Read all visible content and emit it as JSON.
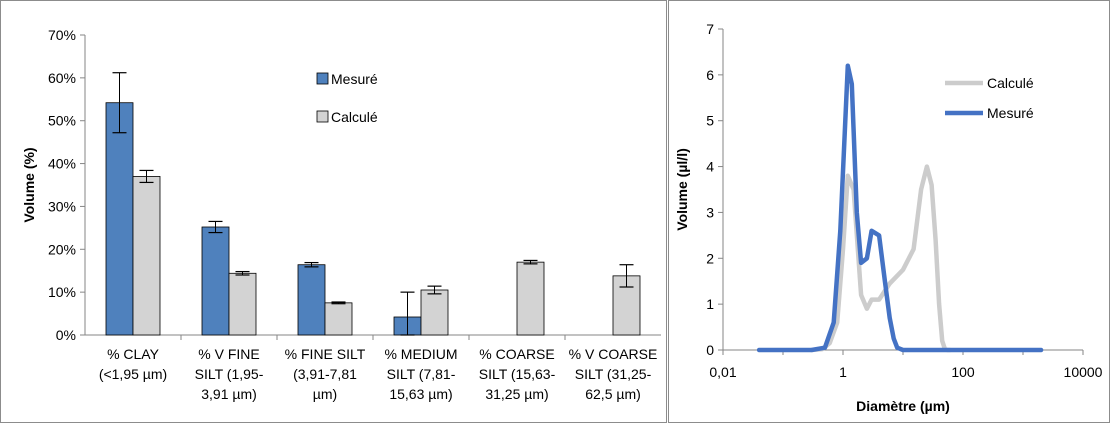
{
  "chart_data": [
    {
      "type": "bar",
      "ylabel": "Volume (%)",
      "ylim": [
        0,
        70
      ],
      "yticks": [
        "0%",
        "10%",
        "20%",
        "30%",
        "40%",
        "50%",
        "60%",
        "70%"
      ],
      "grid": false,
      "legend_position": "top-right",
      "categories": [
        [
          "% CLAY",
          "(<1,95 µm)"
        ],
        [
          "% V FINE",
          "SILT (1,95-",
          "3,91 µm)"
        ],
        [
          "% FINE SILT",
          "(3,91-7,81",
          "µm)"
        ],
        [
          "% MEDIUM",
          "SILT (7,81-",
          "15,63 µm)"
        ],
        [
          "% COARSE",
          "SILT (15,63-",
          "31,25 µm)"
        ],
        [
          "% V COARSE",
          "SILT (31,25-",
          "62,5 µm)"
        ]
      ],
      "series": [
        {
          "name": "Mesuré",
          "color": "#4f81bd",
          "values": [
            54.2,
            25.2,
            16.4,
            4.2,
            0,
            0
          ],
          "errors": [
            7.0,
            1.3,
            0.5,
            5.8,
            0,
            0
          ]
        },
        {
          "name": "Calculé",
          "color": "#d3d3d3",
          "values": [
            37.0,
            14.4,
            7.5,
            10.5,
            17.0,
            13.8
          ],
          "errors": [
            1.4,
            0.4,
            0.2,
            0.9,
            0.4,
            2.6
          ]
        }
      ]
    },
    {
      "type": "line",
      "xlabel": "Diamètre (µm)",
      "ylabel": "Volume (µl/l)",
      "xscale": "log",
      "xlim": [
        0.01,
        10000
      ],
      "ylim": [
        0,
        7
      ],
      "xticks": [
        "0,01",
        "1",
        "100",
        "10000"
      ],
      "yticks": [
        "0",
        "1",
        "2",
        "3",
        "4",
        "5",
        "6",
        "7"
      ],
      "grid": false,
      "legend_position": "top-right",
      "series": [
        {
          "name": "Calculé",
          "color": "#cccccc",
          "x": [
            0.3,
            0.45,
            0.6,
            0.8,
            1.0,
            1.2,
            1.5,
            2.0,
            2.5,
            3.0,
            4.0,
            6.0,
            10,
            15,
            20,
            25,
            30,
            35,
            40,
            45,
            50,
            55,
            60
          ],
          "y": [
            0,
            0.02,
            0.15,
            0.6,
            2.2,
            3.8,
            3.5,
            1.2,
            0.9,
            1.1,
            1.1,
            1.45,
            1.75,
            2.2,
            3.5,
            4.0,
            3.6,
            2.4,
            1.0,
            0.2,
            0.02,
            0,
            0
          ]
        },
        {
          "name": "Mesuré",
          "color": "#4472c4",
          "x": [
            0.04,
            0.3,
            0.5,
            0.7,
            0.9,
            1.2,
            1.4,
            1.7,
            2.0,
            2.5,
            3.0,
            4.0,
            5.0,
            6.0,
            7.0,
            8.0,
            10,
            12,
            100,
            2000
          ],
          "y": [
            0,
            0,
            0.05,
            0.6,
            2.6,
            6.2,
            5.8,
            3.0,
            1.9,
            2.0,
            2.6,
            2.5,
            1.5,
            0.7,
            0.25,
            0.05,
            0,
            0,
            0,
            0
          ]
        }
      ]
    }
  ]
}
